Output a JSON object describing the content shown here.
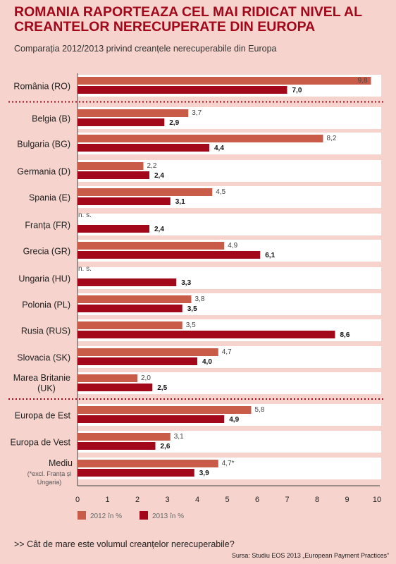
{
  "chart_data": {
    "type": "bar",
    "orientation": "horizontal",
    "title": "ROMANIA RAPORTEAZA CEL MAI RIDICAT NIVEL AL CREANTELOR NERECUPERATE DIN EUROPA",
    "subtitle": "Comparația 2012/2013 privind creanțele nerecuperabile din Europa",
    "categories": [
      {
        "label": "România (RO)"
      },
      {
        "label": "Belgia (B)"
      },
      {
        "label": "Bulgaria (BG)"
      },
      {
        "label": "Germania (D)"
      },
      {
        "label": "Spania (E)"
      },
      {
        "label": "Franța (FR)"
      },
      {
        "label": "Grecia (GR)"
      },
      {
        "label": "Ungaria (HU)"
      },
      {
        "label": "Polonia (PL)"
      },
      {
        "label": "Rusia (RUS)"
      },
      {
        "label": "Slovacia (SK)"
      },
      {
        "label": "Marea Britanie",
        "label2": "(UK)"
      },
      {
        "label": "Europa de Est"
      },
      {
        "label": "Europa de Vest"
      },
      {
        "label": "Mediu",
        "note": "(*excl. Franța și",
        "note2": "Ungaria)"
      }
    ],
    "series": [
      {
        "name": "2012 în %",
        "color": "#c95c48",
        "values": [
          9.8,
          3.7,
          8.2,
          2.2,
          4.5,
          null,
          4.9,
          null,
          3.8,
          3.5,
          4.7,
          2.0,
          5.8,
          3.1,
          4.7
        ],
        "labels": [
          "9,8",
          "3,7",
          "8,2",
          "2,2",
          "4,5",
          "n. s.",
          "4,9",
          "n. s.",
          "3,8",
          "3,5",
          "4,7",
          "2,0",
          "5,8",
          "3,1",
          "4,7*"
        ]
      },
      {
        "name": "2013 în %",
        "color": "#a3081a",
        "values": [
          7.0,
          2.9,
          4.4,
          2.4,
          3.1,
          2.4,
          6.1,
          3.3,
          3.5,
          8.6,
          4.0,
          2.5,
          4.9,
          2.6,
          3.9
        ],
        "labels": [
          "7,0",
          "2,9",
          "4,4",
          "2,4",
          "3,1",
          "2,4",
          "6,1",
          "3,3",
          "3,5",
          "8,6",
          "4,0",
          "2,5",
          "4,9",
          "2,6",
          "3,9"
        ]
      }
    ],
    "xlim": [
      0,
      10
    ],
    "x_ticks": [
      "0",
      "1",
      "2",
      "3",
      "4",
      "5",
      "6",
      "7",
      "8",
      "9",
      "10"
    ],
    "group_separators_after": [
      0,
      11
    ],
    "legend_position": "bottom-left"
  },
  "footer": {
    "question": ">> Cât de mare este volumul creanțelor nerecuperabile?",
    "source": "Sursa: Studiu EOS 2013 „European Payment Practices”"
  }
}
